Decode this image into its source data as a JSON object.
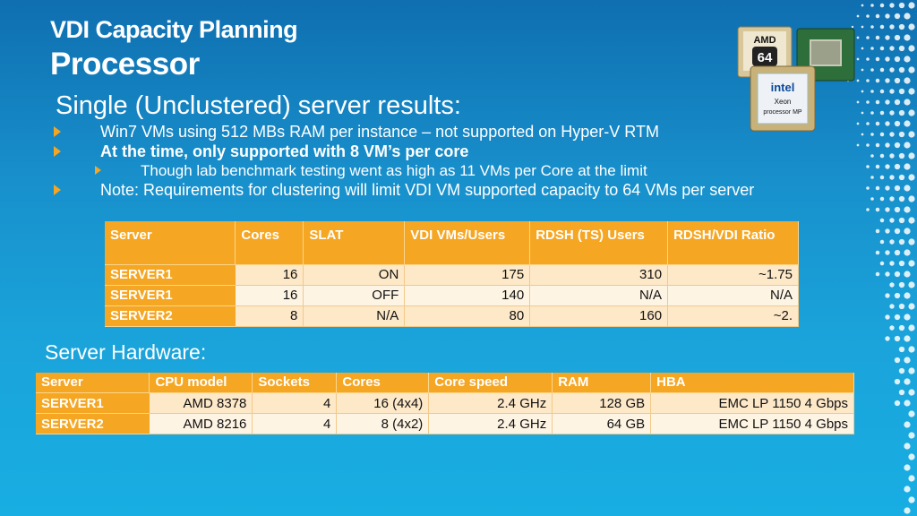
{
  "slide": {
    "title_line1": "VDI Capacity Planning",
    "title_line2": "Processor",
    "heading": "Single (Unclustered) server results:",
    "bullets": [
      "Win7 VMs using 512 MBs RAM per instance – not supported on Hyper-V RTM",
      "At the time, only supported with 8 VM’s per core",
      "Though lab benchmark testing went as high as 11 VMs per Core at the limit",
      "Note: Requirements for clustering will limit VDI VM supported capacity to 64 VMs per server"
    ],
    "hardware_heading": "Server Hardware:"
  },
  "results_table": {
    "headers": [
      "Server",
      "Cores",
      "SLAT",
      "VDI VMs/Users",
      "RDSH (TS) Users",
      "RDSH/VDI Ratio"
    ],
    "rows": [
      [
        "SERVER1",
        "16",
        "ON",
        "175",
        "310",
        "~1.75"
      ],
      [
        "SERVER1",
        "16",
        "OFF",
        "140",
        "N/A",
        "N/A"
      ],
      [
        "SERVER2",
        "8",
        "N/A",
        "80",
        "160",
        "~2."
      ]
    ]
  },
  "hardware_table": {
    "headers": [
      "Server",
      "CPU model",
      "Sockets",
      "Cores",
      "Core speed",
      "RAM",
      "HBA"
    ],
    "rows": [
      [
        "SERVER1",
        "AMD 8378",
        "4",
        "16 (4x4)",
        "2.4 GHz",
        "128 GB",
        "EMC LP 1150 4 Gbps"
      ],
      [
        "SERVER2",
        "AMD 8216",
        "4",
        "8 (4x2)",
        "2.4 GHz",
        "64 GB",
        "EMC LP 1150 4 Gbps"
      ]
    ]
  },
  "images": {
    "amd_logo": "AMD",
    "amd_badge": "64",
    "intel_logo": "intel",
    "intel_line1": "Xeon",
    "intel_line2": "processor MP"
  },
  "colors": {
    "accent": "#f5a623",
    "background": "#1890cc"
  },
  "icons": [
    "bullet-arrow-icon",
    "processor-chips-image",
    "dot-pattern-decoration"
  ]
}
